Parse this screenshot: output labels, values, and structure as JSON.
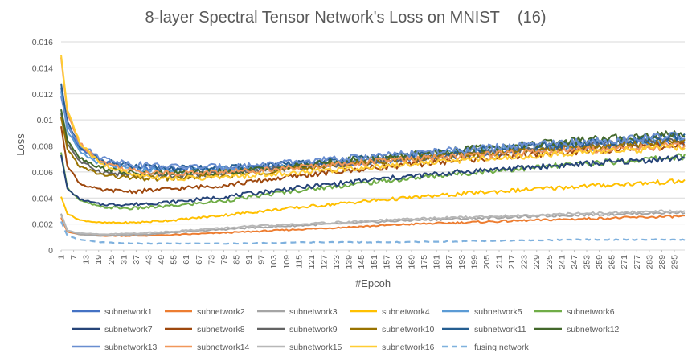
{
  "chart_data": {
    "type": "line",
    "title": "8-layer Spectral Tensor Network's Loss on MNIST",
    "title_suffix": "(16)",
    "xlabel": "#Epcoh",
    "ylabel": "Loss",
    "ylim": [
      0,
      0.016
    ],
    "yticks": [
      "0",
      "0.002",
      "0.004",
      "0.006",
      "0.008",
      "0.01",
      "0.012",
      "0.014",
      "0.016"
    ],
    "xlim": [
      1,
      300
    ],
    "xticks": [
      1,
      7,
      13,
      19,
      25,
      31,
      37,
      43,
      49,
      55,
      61,
      67,
      73,
      79,
      85,
      91,
      97,
      103,
      109,
      115,
      121,
      127,
      133,
      139,
      145,
      151,
      157,
      163,
      169,
      175,
      181,
      187,
      193,
      199,
      205,
      211,
      217,
      223,
      229,
      235,
      241,
      247,
      253,
      259,
      265,
      271,
      277,
      283,
      289,
      295
    ],
    "grid": true,
    "legend_position": "bottom",
    "series": [
      {
        "name": "subnetwork1",
        "color": "#4472C4",
        "dash": false,
        "points": [
          [
            1,
            0.0125
          ],
          [
            4,
            0.0095
          ],
          [
            10,
            0.0078
          ],
          [
            20,
            0.0068
          ],
          [
            35,
            0.0063
          ],
          [
            55,
            0.0062
          ],
          [
            80,
            0.0062
          ],
          [
            110,
            0.0064
          ],
          [
            150,
            0.0068
          ],
          [
            200,
            0.0074
          ],
          [
            250,
            0.0079
          ],
          [
            300,
            0.0083
          ]
        ]
      },
      {
        "name": "subnetwork2",
        "color": "#ED7D31",
        "dash": false,
        "points": [
          [
            1,
            0.0025
          ],
          [
            4,
            0.0014
          ],
          [
            10,
            0.0012
          ],
          [
            20,
            0.0011
          ],
          [
            40,
            0.0011
          ],
          [
            60,
            0.0012
          ],
          [
            90,
            0.0014
          ],
          [
            130,
            0.0017
          ],
          [
            170,
            0.002
          ],
          [
            210,
            0.0022
          ],
          [
            250,
            0.0024
          ],
          [
            300,
            0.0026
          ]
        ]
      },
      {
        "name": "subnetwork3",
        "color": "#A5A5A5",
        "dash": false,
        "points": [
          [
            1,
            0.0028
          ],
          [
            4,
            0.0015
          ],
          [
            10,
            0.0012
          ],
          [
            20,
            0.0011
          ],
          [
            40,
            0.0012
          ],
          [
            60,
            0.0014
          ],
          [
            90,
            0.0017
          ],
          [
            130,
            0.002
          ],
          [
            170,
            0.0023
          ],
          [
            210,
            0.0025
          ],
          [
            250,
            0.0027
          ],
          [
            300,
            0.0029
          ]
        ]
      },
      {
        "name": "subnetwork4",
        "color": "#FFC000",
        "dash": false,
        "points": [
          [
            1,
            0.0041
          ],
          [
            4,
            0.0028
          ],
          [
            10,
            0.0023
          ],
          [
            20,
            0.0021
          ],
          [
            35,
            0.0021
          ],
          [
            55,
            0.0023
          ],
          [
            80,
            0.0027
          ],
          [
            110,
            0.0032
          ],
          [
            150,
            0.0038
          ],
          [
            200,
            0.0044
          ],
          [
            250,
            0.0049
          ],
          [
            300,
            0.0053
          ]
        ]
      },
      {
        "name": "subnetwork5",
        "color": "#5B9BD5",
        "dash": false,
        "points": [
          [
            1,
            0.0122
          ],
          [
            4,
            0.0092
          ],
          [
            10,
            0.0075
          ],
          [
            20,
            0.0066
          ],
          [
            35,
            0.0062
          ],
          [
            55,
            0.0061
          ],
          [
            80,
            0.0062
          ],
          [
            110,
            0.0065
          ],
          [
            150,
            0.007
          ],
          [
            200,
            0.0076
          ],
          [
            250,
            0.0081
          ],
          [
            300,
            0.0086
          ]
        ]
      },
      {
        "name": "subnetwork6",
        "color": "#70AD47",
        "dash": false,
        "points": [
          [
            1,
            0.0075
          ],
          [
            4,
            0.0048
          ],
          [
            10,
            0.0038
          ],
          [
            20,
            0.0033
          ],
          [
            35,
            0.0032
          ],
          [
            55,
            0.0034
          ],
          [
            80,
            0.0038
          ],
          [
            110,
            0.0045
          ],
          [
            150,
            0.0052
          ],
          [
            200,
            0.006
          ],
          [
            250,
            0.0066
          ],
          [
            300,
            0.0072
          ]
        ]
      },
      {
        "name": "subnetwork7",
        "color": "#264478",
        "dash": false,
        "points": [
          [
            1,
            0.0073
          ],
          [
            4,
            0.0047
          ],
          [
            10,
            0.0039
          ],
          [
            20,
            0.0035
          ],
          [
            35,
            0.0035
          ],
          [
            55,
            0.0037
          ],
          [
            80,
            0.0041
          ],
          [
            110,
            0.0047
          ],
          [
            150,
            0.0054
          ],
          [
            200,
            0.0061
          ],
          [
            250,
            0.0066
          ],
          [
            300,
            0.0071
          ]
        ]
      },
      {
        "name": "subnetwork8",
        "color": "#9E480E",
        "dash": false,
        "points": [
          [
            1,
            0.0095
          ],
          [
            4,
            0.0065
          ],
          [
            10,
            0.0051
          ],
          [
            20,
            0.0046
          ],
          [
            35,
            0.0045
          ],
          [
            55,
            0.0047
          ],
          [
            80,
            0.005
          ],
          [
            110,
            0.0056
          ],
          [
            150,
            0.0063
          ],
          [
            200,
            0.007
          ],
          [
            250,
            0.0076
          ],
          [
            300,
            0.0081
          ]
        ]
      },
      {
        "name": "subnetwork9",
        "color": "#636363",
        "dash": false,
        "points": [
          [
            1,
            0.0105
          ],
          [
            4,
            0.0082
          ],
          [
            10,
            0.0068
          ],
          [
            20,
            0.006
          ],
          [
            35,
            0.0057
          ],
          [
            55,
            0.0057
          ],
          [
            80,
            0.0059
          ],
          [
            110,
            0.0063
          ],
          [
            150,
            0.0068
          ],
          [
            200,
            0.0074
          ],
          [
            250,
            0.008
          ],
          [
            300,
            0.0085
          ]
        ]
      },
      {
        "name": "subnetwork10",
        "color": "#997300",
        "dash": false,
        "points": [
          [
            1,
            0.0102
          ],
          [
            4,
            0.0078
          ],
          [
            10,
            0.0064
          ],
          [
            20,
            0.0058
          ],
          [
            35,
            0.0055
          ],
          [
            55,
            0.0055
          ],
          [
            80,
            0.0057
          ],
          [
            110,
            0.0062
          ],
          [
            150,
            0.0068
          ],
          [
            200,
            0.0074
          ],
          [
            250,
            0.0079
          ],
          [
            300,
            0.0084
          ]
        ]
      },
      {
        "name": "subnetwork11",
        "color": "#255E91",
        "dash": false,
        "points": [
          [
            1,
            0.0128
          ],
          [
            4,
            0.0098
          ],
          [
            10,
            0.0079
          ],
          [
            20,
            0.0069
          ],
          [
            35,
            0.0064
          ],
          [
            55,
            0.0063
          ],
          [
            80,
            0.0063
          ],
          [
            110,
            0.0066
          ],
          [
            150,
            0.0071
          ],
          [
            200,
            0.0077
          ],
          [
            250,
            0.0082
          ],
          [
            300,
            0.0087
          ]
        ]
      },
      {
        "name": "subnetwork12",
        "color": "#43682B",
        "dash": false,
        "points": [
          [
            1,
            0.0108
          ],
          [
            4,
            0.0085
          ],
          [
            10,
            0.0071
          ],
          [
            20,
            0.0063
          ],
          [
            35,
            0.0059
          ],
          [
            55,
            0.0059
          ],
          [
            80,
            0.006
          ],
          [
            110,
            0.0064
          ],
          [
            150,
            0.0071
          ],
          [
            200,
            0.0078
          ],
          [
            250,
            0.0084
          ],
          [
            300,
            0.009
          ]
        ]
      },
      {
        "name": "subnetwork13",
        "color": "#698ED0",
        "dash": false,
        "points": [
          [
            1,
            0.0118
          ],
          [
            4,
            0.0096
          ],
          [
            10,
            0.0081
          ],
          [
            20,
            0.0071
          ],
          [
            35,
            0.0066
          ],
          [
            55,
            0.0064
          ],
          [
            80,
            0.0064
          ],
          [
            110,
            0.0067
          ],
          [
            150,
            0.0072
          ],
          [
            200,
            0.0078
          ],
          [
            250,
            0.0083
          ],
          [
            300,
            0.0088
          ]
        ]
      },
      {
        "name": "subnetwork14",
        "color": "#F1975A",
        "dash": false,
        "points": [
          [
            1,
            0.0148
          ],
          [
            4,
            0.0105
          ],
          [
            10,
            0.0082
          ],
          [
            20,
            0.0068
          ],
          [
            35,
            0.0061
          ],
          [
            55,
            0.0059
          ],
          [
            80,
            0.006
          ],
          [
            110,
            0.0063
          ],
          [
            150,
            0.0068
          ],
          [
            200,
            0.0073
          ],
          [
            250,
            0.0077
          ],
          [
            300,
            0.008
          ]
        ]
      },
      {
        "name": "subnetwork15",
        "color": "#B7B7B7",
        "dash": false,
        "points": [
          [
            1,
            0.0027
          ],
          [
            4,
            0.0015
          ],
          [
            10,
            0.0013
          ],
          [
            20,
            0.0012
          ],
          [
            40,
            0.0013
          ],
          [
            60,
            0.0015
          ],
          [
            90,
            0.0018
          ],
          [
            130,
            0.0021
          ],
          [
            170,
            0.0024
          ],
          [
            210,
            0.0026
          ],
          [
            250,
            0.0028
          ],
          [
            300,
            0.003
          ]
        ]
      },
      {
        "name": "subnetwork16",
        "color": "#FFCD33",
        "dash": false,
        "points": [
          [
            1,
            0.015
          ],
          [
            4,
            0.0108
          ],
          [
            10,
            0.0082
          ],
          [
            20,
            0.0066
          ],
          [
            35,
            0.0058
          ],
          [
            55,
            0.0055
          ],
          [
            80,
            0.0056
          ],
          [
            110,
            0.0059
          ],
          [
            150,
            0.0064
          ],
          [
            200,
            0.007
          ],
          [
            250,
            0.0075
          ],
          [
            300,
            0.0079
          ]
        ]
      },
      {
        "name": "fusing network",
        "color": "#7FB1DE",
        "dash": true,
        "points": [
          [
            1,
            0.0022
          ],
          [
            4,
            0.0011
          ],
          [
            10,
            0.0008
          ],
          [
            20,
            0.0006
          ],
          [
            40,
            0.0005
          ],
          [
            80,
            0.0005
          ],
          [
            120,
            0.0006
          ],
          [
            160,
            0.0006
          ],
          [
            200,
            0.0007
          ],
          [
            250,
            0.0008
          ],
          [
            300,
            0.0008
          ]
        ]
      }
    ]
  }
}
